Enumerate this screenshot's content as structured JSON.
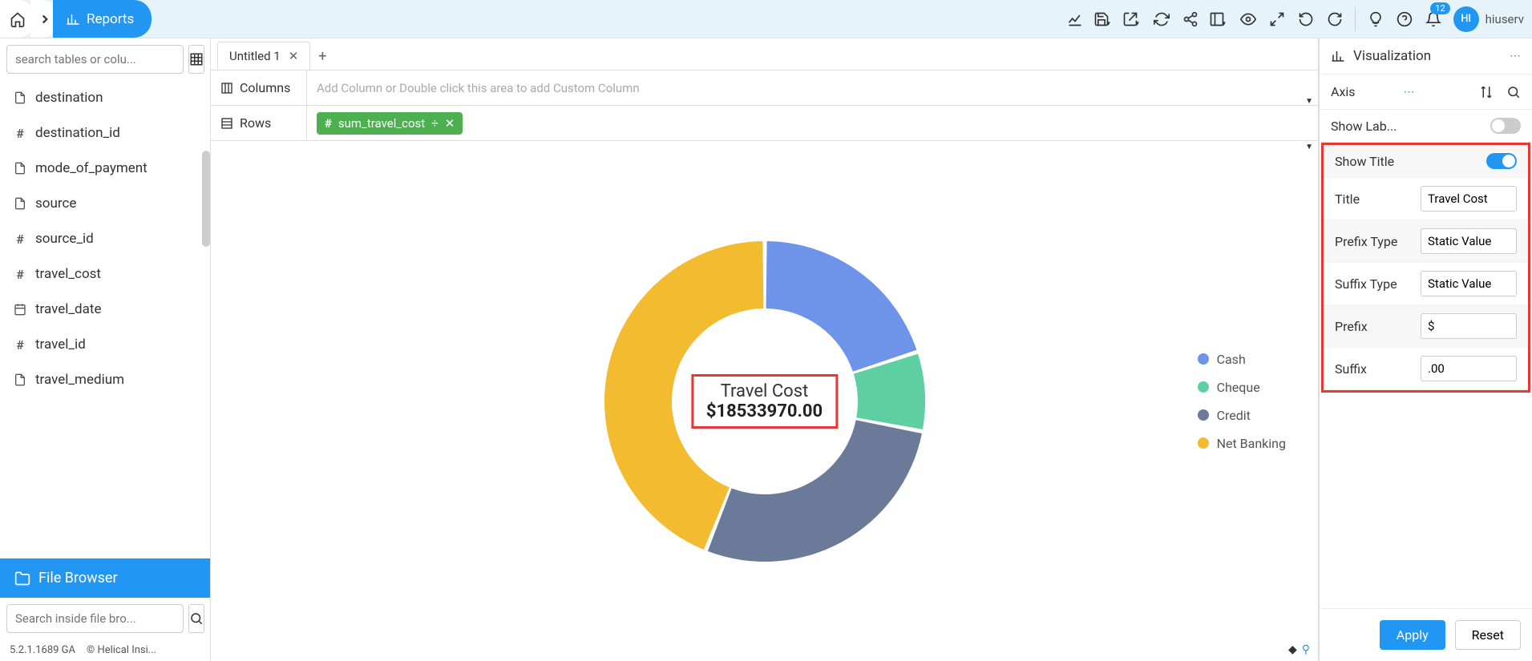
{
  "nav": {
    "reports_label": "Reports"
  },
  "notifications": {
    "count": "12"
  },
  "user": {
    "initials": "HI",
    "name": "hiuserv"
  },
  "sidebar": {
    "search_placeholder": "search tables or colu...",
    "columns": [
      {
        "icon": "file",
        "label": "destination"
      },
      {
        "icon": "hash",
        "label": "destination_id"
      },
      {
        "icon": "file",
        "label": "mode_of_payment"
      },
      {
        "icon": "file",
        "label": "source"
      },
      {
        "icon": "hash",
        "label": "source_id"
      },
      {
        "icon": "hash",
        "label": "travel_cost"
      },
      {
        "icon": "calendar",
        "label": "travel_date"
      },
      {
        "icon": "hash",
        "label": "travel_id"
      },
      {
        "icon": "file",
        "label": "travel_medium"
      }
    ],
    "file_browser_label": "File Browser",
    "file_search_placeholder": "Search inside file bro...",
    "version": "5.2.1.1689 GA",
    "copyright": "© Helical Insi..."
  },
  "tabs": {
    "tab1": "Untitled 1"
  },
  "shelves": {
    "columns_label": "Columns",
    "columns_placeholder": "Add Column or Double click this area to add Custom Column",
    "rows_label": "Rows",
    "row_pill": "sum_travel_cost"
  },
  "chart": {
    "type": "donut",
    "center_title": "Travel Cost",
    "center_value": "$18533970.00",
    "inner_radius_ratio": 0.58,
    "slices": [
      {
        "label": "Cash",
        "color": "#6d94e8",
        "value": 20
      },
      {
        "label": "Cheque",
        "color": "#5ecfa3",
        "value": 8
      },
      {
        "label": "Credit",
        "color": "#6c7a99",
        "value": 28
      },
      {
        "label": "Net Banking",
        "color": "#f2bb30",
        "value": 44
      }
    ],
    "slice_gap_deg": 1.5,
    "background": "#ffffff"
  },
  "viz_panel": {
    "header": "Visualization",
    "axis_label": "Axis",
    "show_labels_label": "Show Lab...",
    "show_labels_on": false,
    "show_title_label": "Show Title",
    "show_title_on": true,
    "title_label": "Title",
    "title_value": "Travel Cost",
    "prefix_type_label": "Prefix Type",
    "prefix_type_value": "Static Value",
    "suffix_type_label": "Suffix Type",
    "suffix_type_value": "Static Value",
    "prefix_label": "Prefix",
    "prefix_value": "$",
    "suffix_label": "Suffix",
    "suffix_value": ".00",
    "apply_label": "Apply",
    "reset_label": "Reset"
  }
}
